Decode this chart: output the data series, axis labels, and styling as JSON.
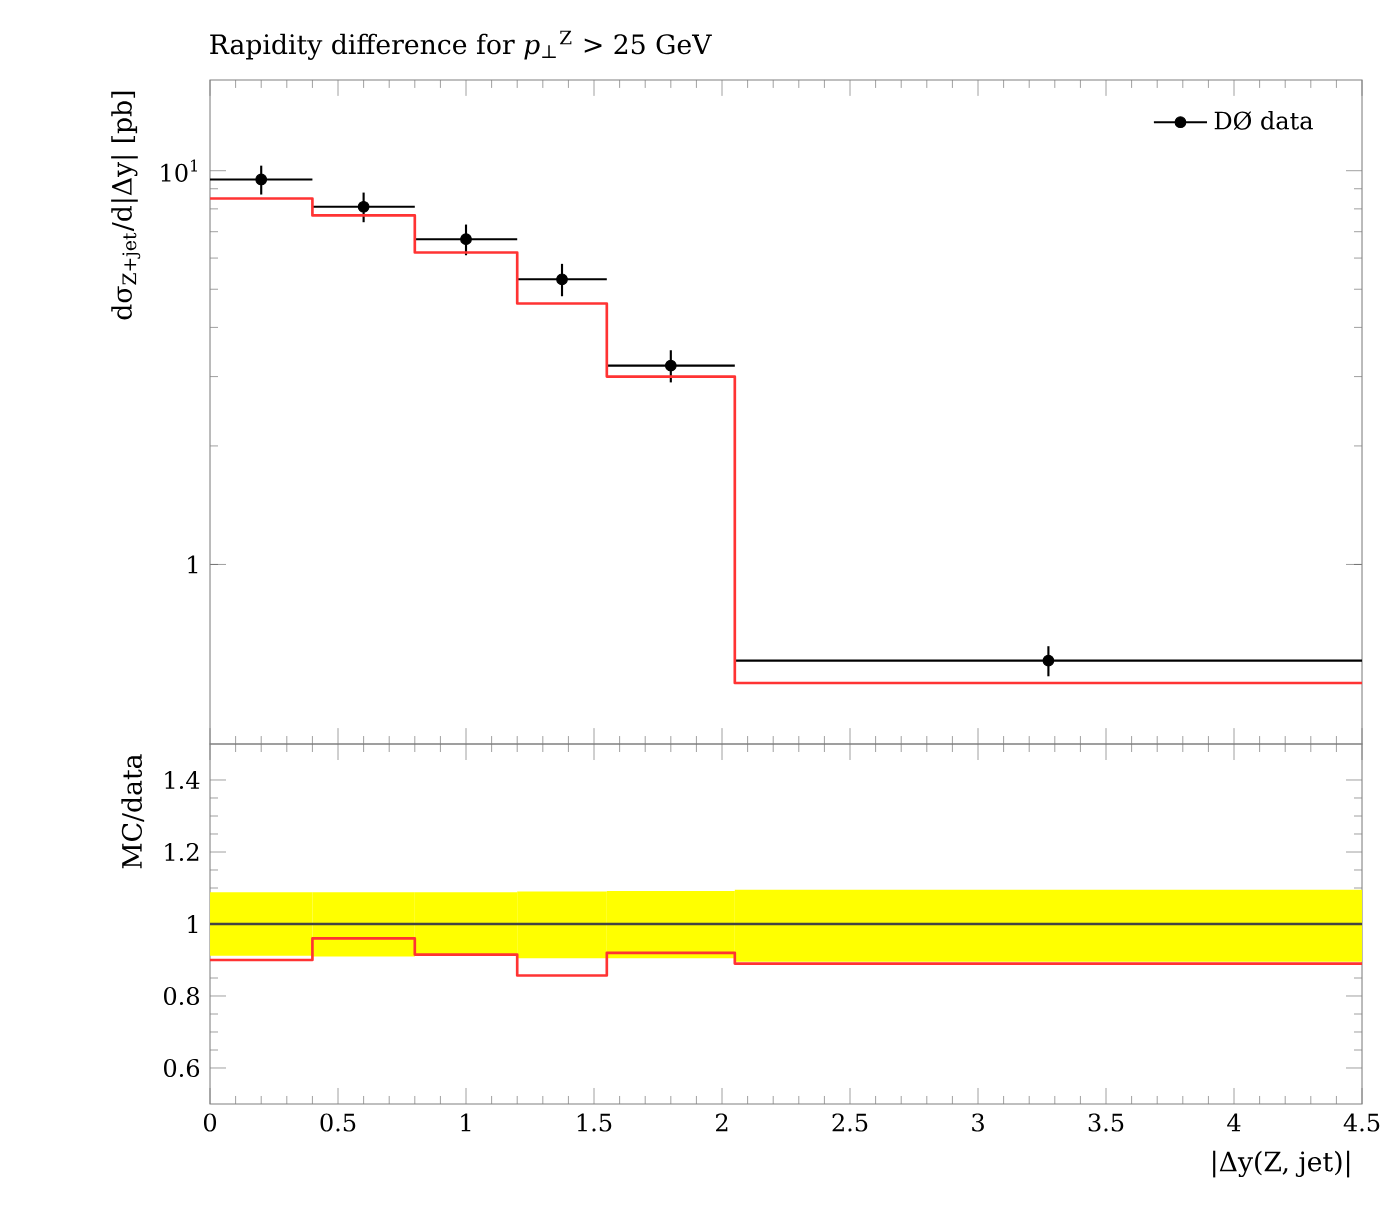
{
  "chart_data": [
    {
      "type": "step",
      "title": "Rapidity difference for *p*$_{⊥}$$^{Z}$ > 25 GeV",
      "ylabel": "dσ$_{Z+jet}$/d|Δy| [pb]",
      "log": "y",
      "xlim": [
        0,
        4.5
      ],
      "ylim": [
        0.35,
        17
      ],
      "xticks": [
        0,
        0.5,
        1,
        1.5,
        2,
        2.5,
        3,
        3.5,
        4,
        4.5
      ],
      "yticks": [
        1,
        {
          "value": 10,
          "label": "10$^{1}$"
        }
      ],
      "tick_labels": "y",
      "legend": "top right",
      "grid": false,
      "series": [
        {
          "type": "scatter",
          "name": "DØ data",
          "color": "#000000",
          "marker": "circle",
          "x": [
            0.2,
            0.6,
            1.0,
            1.375,
            1.8,
            3.275
          ],
          "values": [
            9.5,
            8.1,
            6.7,
            5.3,
            3.2,
            0.57
          ],
          "errors": [
            0.8,
            0.7,
            0.6,
            0.5,
            0.3,
            0.05
          ],
          "xerrors": [
            [
              0,
              0.4
            ],
            [
              0.4,
              0.8
            ],
            [
              0.8,
              1.2
            ],
            [
              1.2,
              1.55
            ],
            [
              1.55,
              2.05
            ],
            [
              2.05,
              4.5
            ]
          ]
        },
        {
          "color": "#ff3333",
          "x": [
            0,
            0.4,
            0.8,
            1.2,
            1.55,
            2.05,
            4.5
          ],
          "values": [
            8.5,
            7.7,
            6.2,
            4.6,
            3.0,
            0.5,
            0.5
          ]
        }
      ]
    },
    {
      "type": "step",
      "xlabel": "|Δy(Z, jet)|",
      "ylabel": "MC/data",
      "xlim": [
        0,
        4.5
      ],
      "ylim": [
        0.5,
        1.5
      ],
      "xticks": [
        0,
        0.5,
        1,
        1.5,
        2,
        2.5,
        3,
        3.5,
        4,
        4.5
      ],
      "yticks": [
        0.6,
        0.8,
        1,
        1.2,
        1.4
      ],
      "grid": false,
      "series": [
        {
          "color": "#444444",
          "colors": [
            "#ffff00",
            "#ffff00",
            "#ffff00",
            "#ffff00",
            "#ffff00",
            "#ffff00",
            "#ffff00"
          ],
          "x": [
            0,
            0.4,
            0.8,
            1.2,
            1.55,
            2.05,
            4.5
          ],
          "values": [
            1,
            1,
            1,
            1,
            1,
            1,
            1
          ],
          "lower": [
            0.912,
            0.91,
            0.912,
            0.905,
            0.905,
            0.895,
            0.895
          ],
          "upper": [
            1.088,
            1.088,
            1.088,
            1.09,
            1.092,
            1.095,
            1.095
          ]
        },
        {
          "color": "#ff3333",
          "x": [
            0,
            0.4,
            0.8,
            1.2,
            1.55,
            2.05,
            4.5
          ],
          "values": [
            0.9,
            0.96,
            0.915,
            0.857,
            0.92,
            0.89,
            0.89
          ]
        }
      ]
    }
  ]
}
